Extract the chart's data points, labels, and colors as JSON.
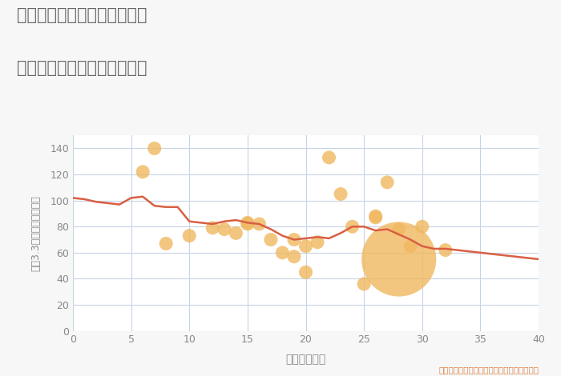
{
  "title_line1": "兵庫県神戸市長田区長田町の",
  "title_line2": "築年数別中古マンション価格",
  "xlabel": "築年数（年）",
  "ylabel": "坪（3.3㎡）単価（万円）",
  "xlim": [
    0,
    40
  ],
  "ylim": [
    0,
    150
  ],
  "xticks": [
    0,
    5,
    10,
    15,
    20,
    25,
    30,
    35,
    40
  ],
  "yticks": [
    0,
    20,
    40,
    60,
    80,
    100,
    120,
    140
  ],
  "bg_color": "#f7f7f7",
  "plot_bg_color": "#ffffff",
  "grid_color": "#c5d5e5",
  "line_color": "#d95f43",
  "scatter_color": "#f0b860",
  "title_color": "#666666",
  "annotation_color": "#e08040",
  "annotation": "円の大きさは、取引のあった物件面積を示す",
  "tick_color": "#888888",
  "label_color": "#888888",
  "line_x": [
    0,
    1,
    2,
    3,
    4,
    5,
    6,
    7,
    8,
    9,
    10,
    11,
    12,
    13,
    14,
    15,
    16,
    17,
    18,
    19,
    20,
    21,
    22,
    23,
    24,
    25,
    26,
    27,
    28,
    29,
    30,
    31,
    32,
    33,
    34,
    35,
    36,
    37,
    38,
    39,
    40
  ],
  "line_y": [
    102,
    101,
    99,
    98,
    97,
    102,
    103,
    96,
    95,
    95,
    84,
    83,
    82,
    84,
    85,
    83,
    82,
    78,
    73,
    70,
    71,
    72,
    71,
    75,
    80,
    80,
    77,
    78,
    74,
    70,
    65,
    63,
    63,
    62,
    61,
    60,
    59,
    58,
    57,
    56,
    55
  ],
  "scatter_x": [
    6,
    7,
    8,
    10,
    12,
    13,
    14,
    15,
    15,
    16,
    17,
    18,
    19,
    19,
    20,
    20,
    21,
    22,
    23,
    24,
    25,
    26,
    26,
    27,
    28,
    28,
    29,
    30,
    32
  ],
  "scatter_y": [
    122,
    140,
    67,
    73,
    79,
    78,
    75,
    83,
    82,
    82,
    70,
    60,
    57,
    70,
    45,
    65,
    68,
    133,
    105,
    80,
    36,
    87,
    88,
    114,
    78,
    55,
    65,
    80,
    62
  ],
  "scatter_size": [
    150,
    150,
    150,
    150,
    150,
    150,
    150,
    150,
    150,
    150,
    150,
    150,
    150,
    150,
    150,
    150,
    150,
    150,
    150,
    150,
    150,
    150,
    150,
    150,
    150,
    4500,
    150,
    150,
    150
  ]
}
